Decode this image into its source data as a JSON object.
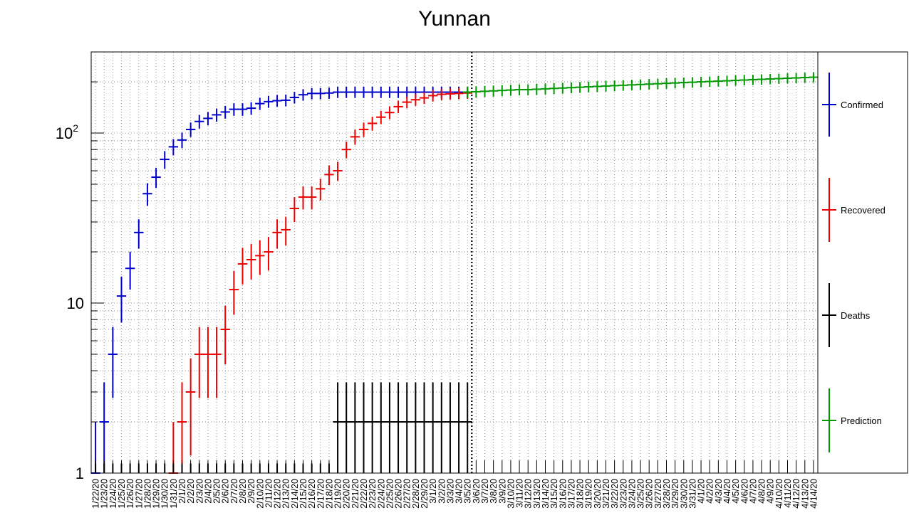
{
  "chart_data": {
    "type": "scatter",
    "title": "Yunnan",
    "xlabel": "",
    "ylabel": "",
    "y_scale": "log",
    "ylim": [
      1,
      300
    ],
    "y_ticks": [
      {
        "value": 1,
        "label": "1",
        "exp": ""
      },
      {
        "value": 10,
        "label": "10",
        "exp": ""
      },
      {
        "value": 100,
        "label": "10",
        "exp": "2"
      }
    ],
    "grid": true,
    "legend_position": "right",
    "categories": [
      "1/22/20",
      "1/23/20",
      "1/24/20",
      "1/25/20",
      "1/26/20",
      "1/27/20",
      "1/28/20",
      "1/29/20",
      "1/30/20",
      "1/31/20",
      "2/1/20",
      "2/2/20",
      "2/3/20",
      "2/4/20",
      "2/5/20",
      "2/6/20",
      "2/7/20",
      "2/8/20",
      "2/9/20",
      "2/10/20",
      "2/11/20",
      "2/12/20",
      "2/13/20",
      "2/14/20",
      "2/15/20",
      "2/16/20",
      "2/17/20",
      "2/18/20",
      "2/19/20",
      "2/20/20",
      "2/21/20",
      "2/22/20",
      "2/23/20",
      "2/24/20",
      "2/25/20",
      "2/26/20",
      "2/27/20",
      "2/28/20",
      "2/29/20",
      "3/1/20",
      "3/2/20",
      "3/3/20",
      "3/4/20",
      "3/5/20",
      "3/6/20",
      "3/7/20",
      "3/8/20",
      "3/9/20",
      "3/10/20",
      "3/11/20",
      "3/12/20",
      "3/13/20",
      "3/14/20",
      "3/15/20",
      "3/16/20",
      "3/17/20",
      "3/18/20",
      "3/19/20",
      "3/20/20",
      "3/21/20",
      "3/22/20",
      "3/23/20",
      "3/24/20",
      "3/25/20",
      "3/26/20",
      "3/27/20",
      "3/28/20",
      "3/29/20",
      "3/30/20",
      "3/31/20",
      "4/1/20",
      "4/2/20",
      "4/3/20",
      "4/4/20",
      "4/5/20",
      "4/6/20",
      "4/7/20",
      "4/8/20",
      "4/9/20",
      "4/10/20",
      "4/11/20",
      "4/12/20",
      "4/13/20",
      "4/14/20"
    ],
    "divider_after": "3/5/20",
    "series": [
      {
        "name": "Confirmed",
        "color": "#0000cc",
        "start_index": 0,
        "values": [
          1,
          2,
          5,
          11,
          16,
          26,
          44,
          55,
          70,
          83,
          91,
          105,
          117,
          122,
          128,
          133,
          138,
          138,
          140,
          149,
          153,
          155,
          156,
          162,
          168,
          171,
          171,
          172,
          174,
          174,
          174,
          174,
          174,
          174,
          174,
          174,
          174,
          174,
          174,
          174,
          174,
          174,
          174,
          174
        ]
      },
      {
        "name": "Recovered",
        "color": "#ee0000",
        "start_index": 0,
        "values": [
          null,
          null,
          null,
          null,
          null,
          null,
          null,
          null,
          null,
          1,
          2,
          3,
          5,
          5,
          5,
          7,
          12,
          17,
          18,
          19,
          20,
          26,
          27,
          36,
          42,
          42,
          47,
          57,
          60,
          80,
          95,
          105,
          114,
          124,
          132,
          143,
          152,
          157,
          161,
          166,
          169,
          170,
          171,
          172
        ]
      },
      {
        "name": "Deaths",
        "color": "#000000",
        "start_index": 0,
        "values": [
          0,
          0,
          0,
          0,
          0,
          0,
          0,
          0,
          0,
          0,
          0,
          0,
          0,
          0,
          0,
          0,
          0,
          0,
          0,
          0,
          0,
          0,
          0,
          0,
          0,
          0,
          0,
          0,
          2,
          2,
          2,
          2,
          2,
          2,
          2,
          2,
          2,
          2,
          2,
          2,
          2,
          2,
          2,
          2
        ]
      },
      {
        "name": "Prediction",
        "color": "#009900",
        "start_index": 43,
        "values": [
          174,
          175,
          176,
          177,
          178,
          179,
          180,
          180,
          181,
          182,
          183,
          184,
          185,
          186,
          187,
          188,
          189,
          190,
          191,
          192,
          193,
          194,
          195,
          196,
          197,
          198,
          199,
          200,
          201,
          202,
          203,
          204,
          205,
          206,
          207,
          208,
          209,
          210,
          211,
          212,
          213
        ]
      }
    ]
  }
}
